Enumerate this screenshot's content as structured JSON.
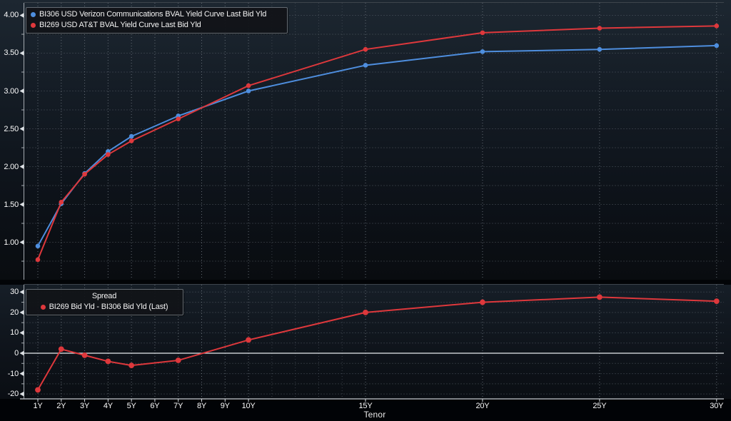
{
  "colors": {
    "verizon_blue": "#4e8ede",
    "att_red": "#de383c",
    "grid": "#59616a",
    "grid_minor": "#4d545d",
    "grid_tick": "#6c747d",
    "axis_line": "#a4aab0",
    "x_axis_line": "#c6cbd0",
    "zero_line": "#e8ecef",
    "frame": "#3d444c",
    "tick_mark": "#dde1e5",
    "label_text": "#fafafa"
  },
  "top_legend": {
    "items": [
      {
        "label": "BI306 USD Verizon Communications BVAL Yield Curve Last Bid Yld",
        "color": "#4e8ede"
      },
      {
        "label": "BI269 USD AT&T BVAL Yield Curve Last Bid Yld",
        "color": "#de383c"
      }
    ]
  },
  "spread_legend": {
    "title": "Spread",
    "item": {
      "label": "BI269 Bid Yld - BI306 Bid Yld (Last)",
      "color": "#de383c"
    }
  },
  "x_axis": {
    "label": "Tenor",
    "tick_years": [
      1,
      2,
      3,
      4,
      5,
      6,
      7,
      8,
      9,
      10,
      15,
      20,
      25,
      30
    ],
    "tick_labels": [
      "1Y",
      "2Y",
      "3Y",
      "4Y",
      "5Y",
      "6Y",
      "7Y",
      "8Y",
      "9Y",
      "10Y",
      "15Y",
      "20Y",
      "25Y",
      "30Y"
    ],
    "gridline_years": [
      1,
      2,
      3,
      4,
      5,
      6,
      7,
      8,
      9,
      10,
      11,
      12,
      13,
      14,
      15,
      20,
      25,
      30
    ]
  },
  "chart_data": [
    {
      "type": "line",
      "panel": "yield",
      "x_tenor_years": [
        1,
        2,
        3,
        4,
        5,
        7,
        10,
        15,
        20,
        25,
        30
      ],
      "categories": [
        "1Y",
        "2Y",
        "3Y",
        "4Y",
        "5Y",
        "7Y",
        "10Y",
        "15Y",
        "20Y",
        "25Y",
        "30Y"
      ],
      "series": [
        {
          "name": "BI306 USD Verizon Communications BVAL Yield Curve Last Bid Yld",
          "color": "#4e8ede",
          "values": [
            0.95,
            1.51,
            1.91,
            2.2,
            2.4,
            2.67,
            3.0,
            3.34,
            3.52,
            3.55,
            3.6
          ]
        },
        {
          "name": "BI269 USD AT&T BVAL Yield Curve Last Bid Yld",
          "color": "#de383c",
          "values": [
            0.77,
            1.53,
            1.9,
            2.16,
            2.34,
            2.63,
            3.07,
            3.55,
            3.77,
            3.83,
            3.86
          ]
        }
      ],
      "ylabel": "",
      "ylim": [
        0.505,
        4.165
      ],
      "ytick_values": [
        4.0,
        3.5,
        3.0,
        2.5,
        2.0,
        1.5,
        1.0
      ],
      "ytick_labels": [
        "4.00",
        "3.50",
        "3.00",
        "2.50",
        "2.00",
        "1.50",
        "1.00"
      ],
      "minor_tick_values": [
        3.75,
        3.25,
        2.75,
        2.25,
        1.75,
        1.25,
        0.75
      ],
      "grid": true,
      "legend_position": "top-left"
    },
    {
      "type": "line",
      "panel": "spread",
      "title": "Spread",
      "x_tenor_years": [
        1,
        2,
        3,
        4,
        5,
        7,
        10,
        15,
        20,
        25,
        30
      ],
      "categories": [
        "1Y",
        "2Y",
        "3Y",
        "4Y",
        "5Y",
        "7Y",
        "10Y",
        "15Y",
        "20Y",
        "25Y",
        "30Y"
      ],
      "series": [
        {
          "name": "BI269 Bid Yld - BI306 Bid Yld (Last)",
          "color": "#de383c",
          "values": [
            -18,
            2,
            -1,
            -4,
            -6,
            -3.5,
            6.5,
            20,
            25,
            27.5,
            25.5
          ]
        }
      ],
      "ylim": [
        -22.4,
        33.6
      ],
      "ytick_values": [
        30,
        20,
        10,
        0,
        -10,
        -20
      ],
      "ytick_labels": [
        "30",
        "20",
        "10",
        "0",
        "-10",
        "-20"
      ],
      "minor_tick_values": [
        25,
        15,
        5,
        -5,
        -15
      ],
      "zero_line": true,
      "grid": true,
      "legend_position": "top-left"
    }
  ]
}
